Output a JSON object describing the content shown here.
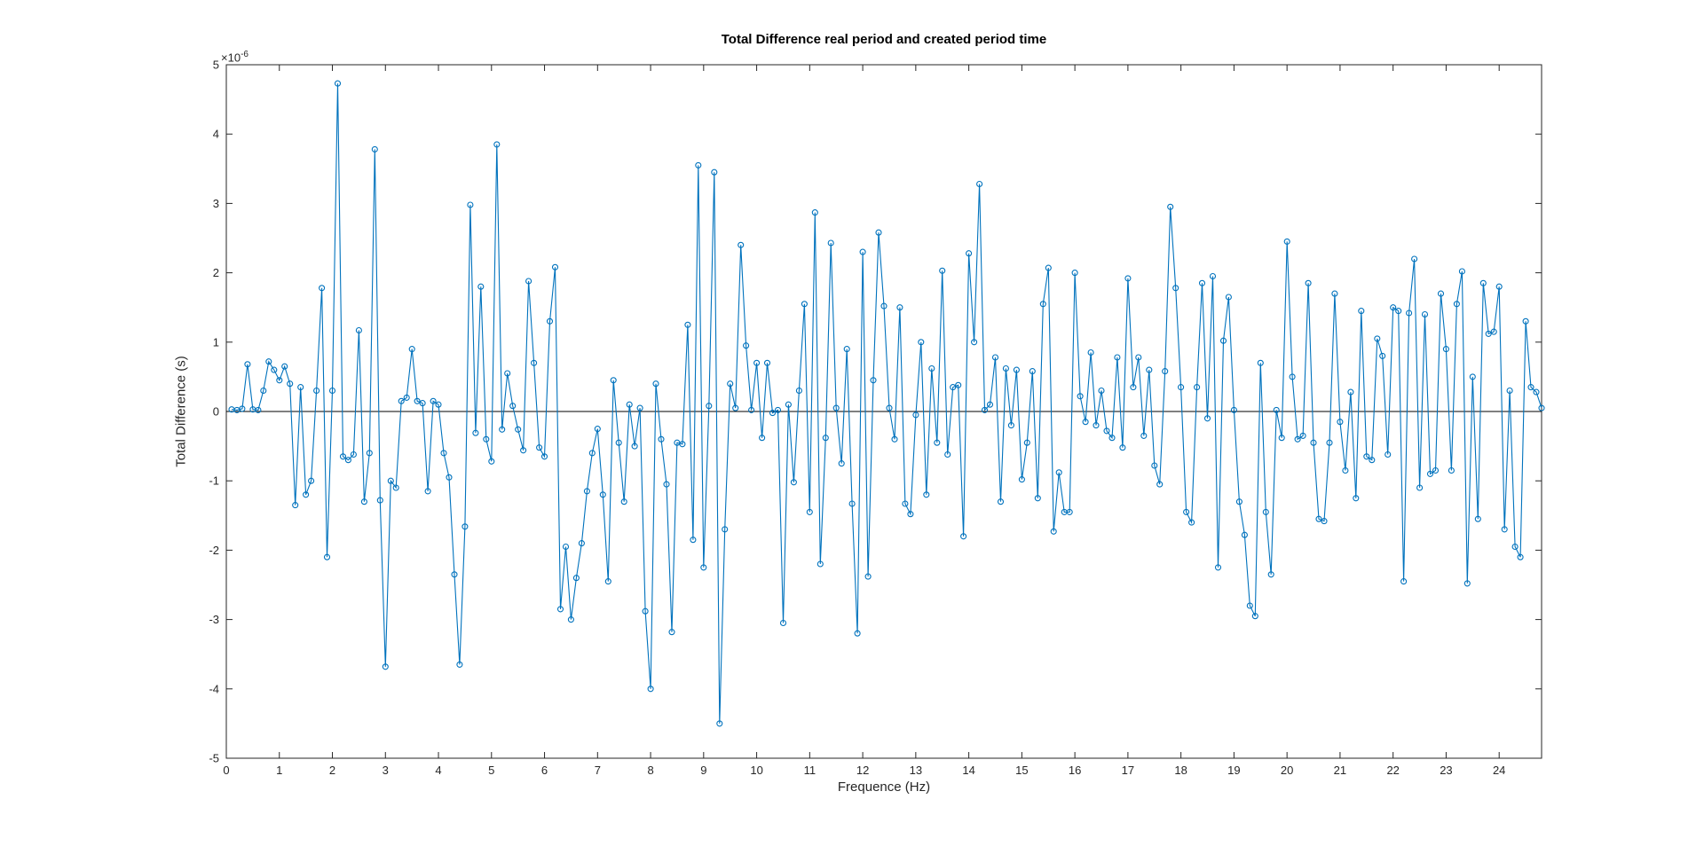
{
  "chart": {
    "title": "Total Difference real period and created period time",
    "xlabel": "Frequence (Hz)",
    "ylabel": "Total Difference (s)",
    "exponent": {
      "base": "×10",
      "power": "-6"
    }
  },
  "chart_data": {
    "type": "line",
    "marker": "o",
    "line_color": "#0072BD",
    "zero_line_color": "#000000",
    "axis_color": "#262626",
    "background": "#ffffff",
    "grid": false,
    "legend": "none",
    "title": "Total Difference real period and created period time",
    "xlabel": "Frequence (Hz)",
    "ylabel": "Total Difference (s)",
    "y_scale_factor": "1e-6",
    "xlim": [
      0,
      24.8
    ],
    "ylim": [
      -5,
      5
    ],
    "x_ticks": [
      0,
      1,
      2,
      3,
      4,
      5,
      6,
      7,
      8,
      9,
      10,
      11,
      12,
      13,
      14,
      15,
      16,
      17,
      18,
      19,
      20,
      21,
      22,
      23,
      24
    ],
    "y_ticks": [
      -5,
      -4,
      -3,
      -2,
      -1,
      0,
      1,
      2,
      3,
      4,
      5
    ],
    "x_start": 0.1,
    "x_step": 0.1,
    "zero_line": true,
    "values": [
      0.03,
      0.02,
      0.04,
      0.68,
      0.03,
      0.02,
      0.3,
      0.72,
      0.6,
      0.45,
      0.65,
      0.4,
      -1.35,
      0.35,
      -1.2,
      -1.0,
      0.3,
      1.78,
      -2.1,
      0.3,
      4.73,
      -0.65,
      -0.7,
      -0.62,
      1.17,
      -1.3,
      -0.6,
      3.78,
      -1.28,
      -3.68,
      -1.0,
      -1.1,
      0.15,
      0.2,
      0.9,
      0.15,
      0.12,
      -1.15,
      0.15,
      0.1,
      -0.6,
      -0.95,
      -2.35,
      -3.65,
      -1.66,
      2.98,
      -0.31,
      1.8,
      -0.4,
      -0.72,
      3.85,
      -0.26,
      0.55,
      0.08,
      -0.26,
      -0.56,
      1.88,
      0.7,
      -0.52,
      -0.65,
      1.3,
      2.08,
      -2.85,
      -1.95,
      -3.0,
      -2.4,
      -1.9,
      -1.15,
      -0.6,
      -0.25,
      -1.2,
      -2.45,
      0.45,
      -0.45,
      -1.3,
      0.1,
      -0.5,
      0.05,
      -2.88,
      -4.0,
      0.4,
      -0.4,
      -1.05,
      -3.18,
      -0.45,
      -0.47,
      1.25,
      -1.85,
      3.55,
      -2.25,
      0.08,
      3.45,
      -4.5,
      -1.7,
      0.4,
      0.05,
      2.4,
      0.95,
      0.02,
      0.7,
      -0.38,
      0.7,
      -0.02,
      0.02,
      -3.05,
      0.1,
      -1.02,
      0.3,
      1.55,
      -1.45,
      2.87,
      -2.2,
      -0.38,
      2.43,
      0.05,
      -0.75,
      0.9,
      -1.33,
      -3.2,
      2.3,
      -2.38,
      0.45,
      2.58,
      1.52,
      0.05,
      -0.4,
      1.5,
      -1.33,
      -1.48,
      -0.05,
      1.0,
      -1.2,
      0.62,
      -0.45,
      2.03,
      -0.62,
      0.35,
      0.38,
      -1.8,
      2.28,
      1.0,
      3.28,
      0.02,
      0.1,
      0.78,
      -1.3,
      0.62,
      -0.2,
      0.6,
      -0.98,
      -0.45,
      0.58,
      -1.25,
      1.55,
      2.07,
      -1.73,
      -0.88,
      -1.45,
      -1.45,
      2.0,
      0.22,
      -0.15,
      0.85,
      -0.2,
      0.3,
      -0.28,
      -0.38,
      0.78,
      -0.52,
      1.92,
      0.35,
      0.78,
      -0.35,
      0.6,
      -0.78,
      -1.05,
      0.58,
      2.95,
      1.78,
      0.35,
      -1.45,
      -1.6,
      0.35,
      1.85,
      -0.1,
      1.95,
      -2.25,
      1.02,
      1.65,
      0.02,
      -1.3,
      -1.78,
      -2.8,
      -2.95,
      0.7,
      -1.45,
      -2.35,
      0.02,
      -0.38,
      2.45,
      0.5,
      -0.4,
      -0.35,
      1.85,
      -0.45,
      -1.55,
      -1.58,
      -0.45,
      1.7,
      -0.15,
      -0.85,
      0.28,
      -1.25,
      1.45,
      -0.65,
      -0.7,
      1.05,
      0.8,
      -0.62,
      1.5,
      1.45,
      -2.45,
      1.42,
      2.2,
      -1.1,
      1.4,
      -0.9,
      -0.85,
      1.7,
      0.9,
      -0.85,
      1.55,
      2.02,
      -2.48,
      0.5,
      -1.55,
      1.85,
      1.12,
      1.15,
      1.8,
      -1.7,
      0.3,
      -1.95,
      -2.1,
      1.3,
      0.35,
      0.28,
      0.05
    ]
  }
}
